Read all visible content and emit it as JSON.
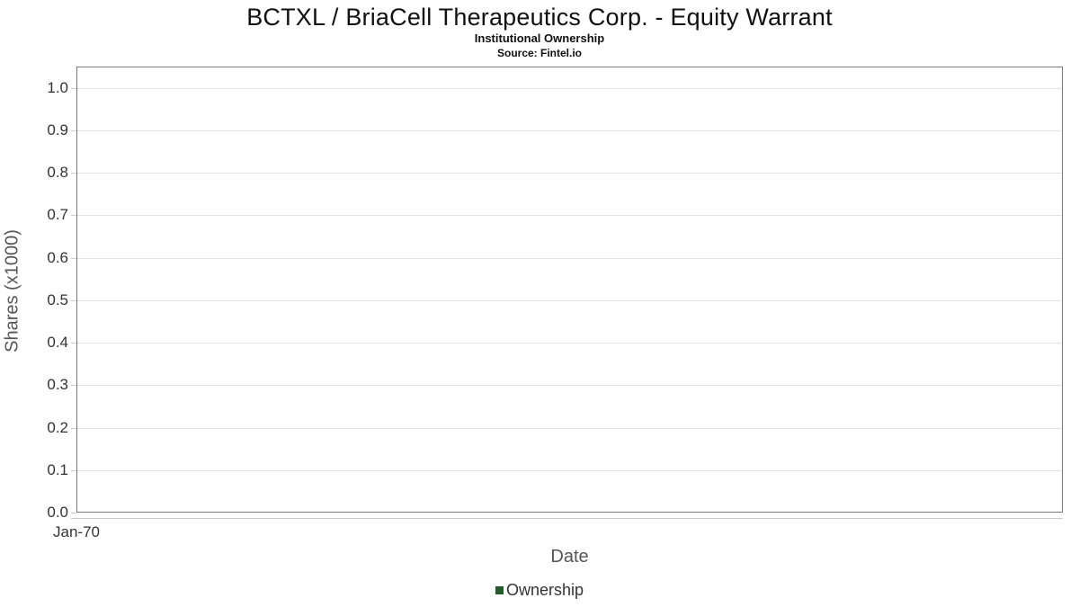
{
  "header": {
    "title": "BCTXL / BriaCell Therapeutics Corp. - Equity Warrant",
    "subtitle": "Institutional Ownership",
    "source": "Source: Fintel.io"
  },
  "chart_data": {
    "type": "line",
    "title": "BCTXL / BriaCell Therapeutics Corp. - Equity Warrant",
    "subtitle": "Institutional Ownership",
    "source": "Source: Fintel.io",
    "xlabel": "Date",
    "ylabel": "Shares (x1000)",
    "x_ticks": [
      "Jan-70"
    ],
    "y_axis": {
      "min": 0,
      "max": 1.05,
      "ticks": [
        0.0,
        0.1,
        0.2,
        0.3,
        0.4,
        0.5,
        0.6,
        0.7,
        0.8,
        0.9,
        1.0
      ],
      "tick_decimals": 1
    },
    "grid": "horizontal",
    "legend": {
      "position": "bottom"
    },
    "series": [
      {
        "name": "Ownership",
        "color": "#235c27",
        "points": []
      }
    ]
  },
  "colors": {
    "legend_marker": "#235c27",
    "plot_border": "#7a7a7a",
    "gridline": "#e4e4e4",
    "axis_line": "#c9c9c9",
    "tick": "#cccccc",
    "text_primary": "#333333",
    "text_secondary": "#555555",
    "title_text": "#111111",
    "background": "#ffffff"
  }
}
